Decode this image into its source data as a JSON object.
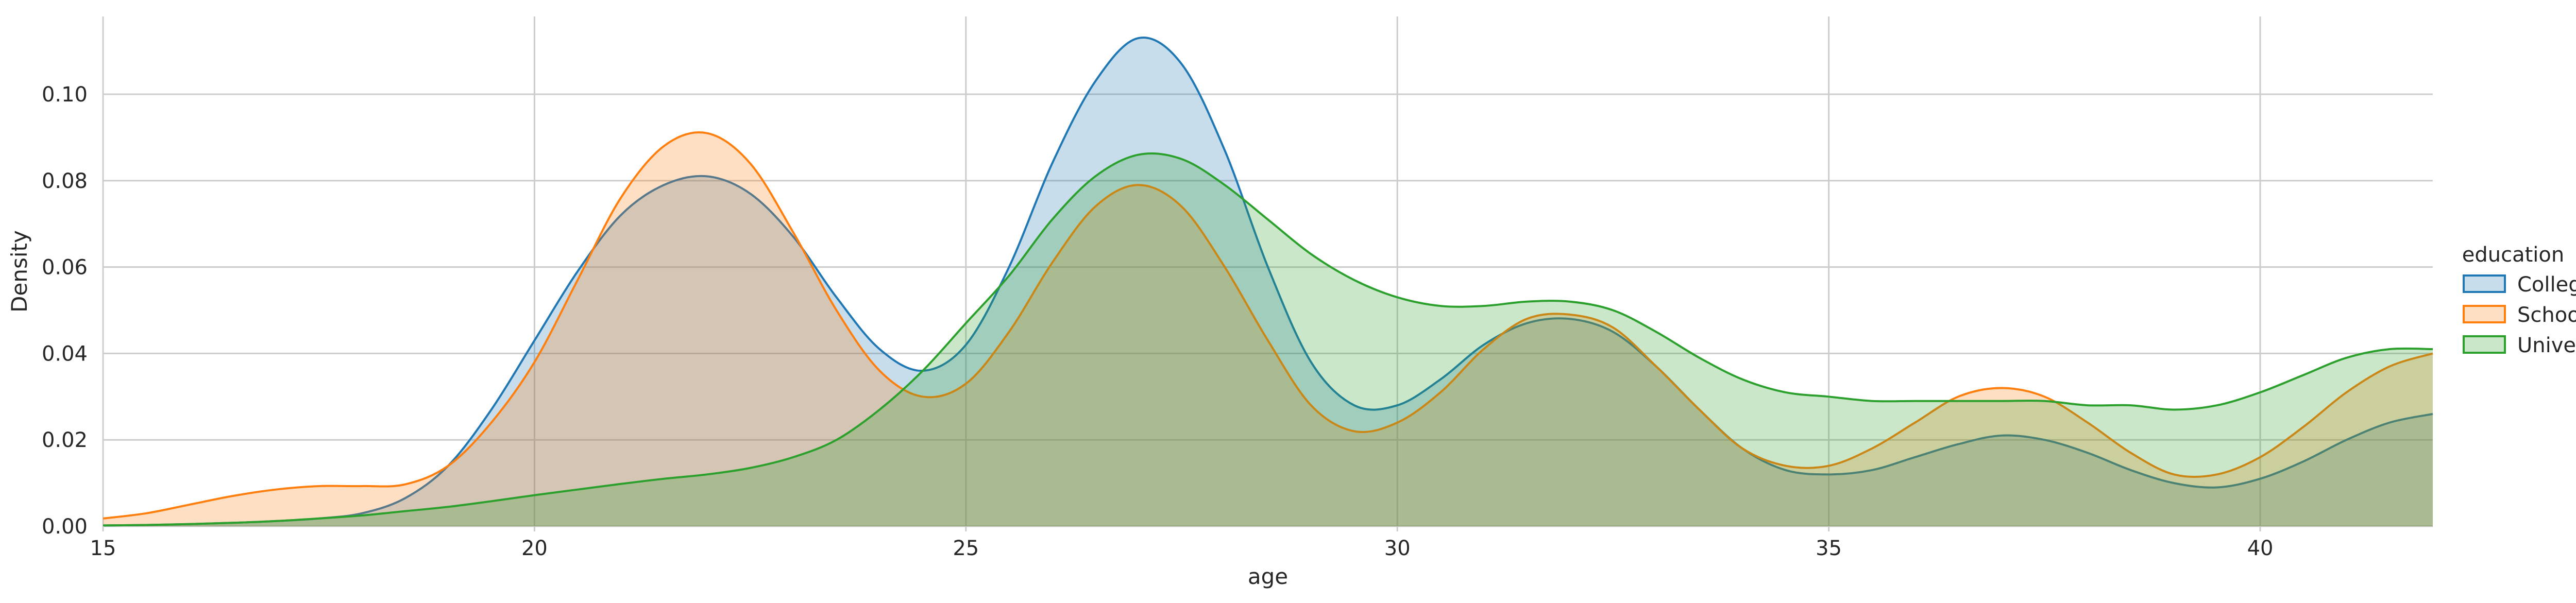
{
  "chart_data": {
    "type": "area",
    "title": "",
    "xlabel": "age",
    "ylabel": "Density",
    "xlim": [
      15,
      42
    ],
    "ylim": [
      0,
      0.118
    ],
    "xticks": [
      15,
      20,
      25,
      30,
      35,
      40
    ],
    "yticks": [
      0.0,
      0.02,
      0.04,
      0.06,
      0.08,
      0.1
    ],
    "xtick_labels": [
      "15",
      "20",
      "25",
      "30",
      "35",
      "40"
    ],
    "ytick_labels": [
      "0.00",
      "0.02",
      "0.04",
      "0.06",
      "0.08",
      "0.10"
    ],
    "grid": true,
    "legend": {
      "title": "education",
      "placement": "right"
    },
    "x": [
      15,
      15.5,
      16,
      16.5,
      17,
      17.5,
      18,
      18.5,
      19,
      19.5,
      20,
      20.5,
      21,
      21.5,
      22,
      22.5,
      23,
      23.5,
      24,
      24.5,
      25,
      25.5,
      26,
      26.5,
      27,
      27.5,
      28,
      28.5,
      29,
      29.5,
      30,
      30.5,
      31,
      31.5,
      32,
      32.5,
      33,
      33.5,
      34,
      34.5,
      35,
      35.5,
      36,
      36.5,
      37,
      37.5,
      38,
      38.5,
      39,
      39.5,
      40,
      40.5,
      41,
      41.5,
      42
    ],
    "series": [
      {
        "name": "College",
        "color": "#1f77b4",
        "values": [
          0.0002,
          0.0003,
          0.0005,
          0.0008,
          0.0012,
          0.0018,
          0.003,
          0.0065,
          0.014,
          0.027,
          0.043,
          0.059,
          0.072,
          0.079,
          0.081,
          0.077,
          0.067,
          0.053,
          0.041,
          0.036,
          0.042,
          0.06,
          0.084,
          0.103,
          0.113,
          0.107,
          0.087,
          0.06,
          0.038,
          0.028,
          0.028,
          0.034,
          0.042,
          0.047,
          0.048,
          0.045,
          0.037,
          0.027,
          0.018,
          0.013,
          0.012,
          0.013,
          0.016,
          0.019,
          0.021,
          0.02,
          0.017,
          0.013,
          0.01,
          0.009,
          0.011,
          0.015,
          0.02,
          0.024,
          0.026
        ]
      },
      {
        "name": "School",
        "color": "#ff7f0e",
        "values": [
          0.0018,
          0.003,
          0.005,
          0.007,
          0.0085,
          0.0093,
          0.0093,
          0.0097,
          0.014,
          0.024,
          0.038,
          0.057,
          0.076,
          0.088,
          0.091,
          0.084,
          0.068,
          0.05,
          0.036,
          0.03,
          0.033,
          0.045,
          0.061,
          0.074,
          0.079,
          0.074,
          0.06,
          0.043,
          0.028,
          0.022,
          0.024,
          0.031,
          0.041,
          0.048,
          0.049,
          0.046,
          0.037,
          0.027,
          0.018,
          0.014,
          0.014,
          0.018,
          0.024,
          0.03,
          0.032,
          0.03,
          0.024,
          0.017,
          0.012,
          0.012,
          0.016,
          0.023,
          0.031,
          0.037,
          0.04
        ]
      },
      {
        "name": "University",
        "color": "#2ca02c",
        "values": [
          0.0002,
          0.0003,
          0.0005,
          0.0008,
          0.0012,
          0.0018,
          0.0025,
          0.0035,
          0.0045,
          0.0058,
          0.0072,
          0.0085,
          0.0098,
          0.011,
          0.012,
          0.0135,
          0.016,
          0.02,
          0.027,
          0.036,
          0.047,
          0.058,
          0.071,
          0.081,
          0.086,
          0.085,
          0.079,
          0.071,
          0.063,
          0.057,
          0.053,
          0.051,
          0.051,
          0.052,
          0.052,
          0.05,
          0.045,
          0.039,
          0.034,
          0.031,
          0.03,
          0.029,
          0.029,
          0.029,
          0.029,
          0.029,
          0.028,
          0.028,
          0.027,
          0.028,
          0.031,
          0.035,
          0.039,
          0.041,
          0.041
        ]
      }
    ]
  }
}
